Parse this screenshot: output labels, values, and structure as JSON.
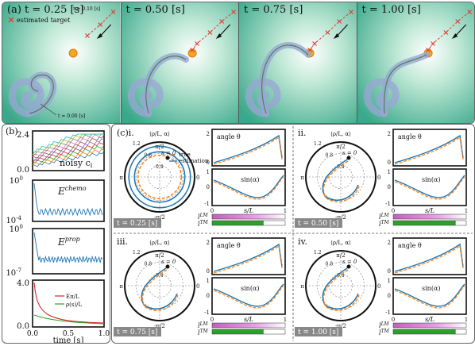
{
  "panel_a": {
    "label": "(a)",
    "frames": [
      {
        "title": "t = 0.25 [s]"
      },
      {
        "title": "t = 0.50 [s]"
      },
      {
        "title": "t = 0.75 [s]"
      },
      {
        "title": "t = 1.00 [s]"
      }
    ],
    "legend_target": "estimated target",
    "annot_start": "t = 0.00 [s]",
    "annot_target": "t = 0.10 [s]"
  },
  "panel_b": {
    "label": "(b)",
    "plot1": {
      "ymax": "2.4",
      "ymin": "0.0",
      "title": "noisy c",
      "sub": "i"
    },
    "plot2": {
      "ymax": "10",
      "ymax_exp": "0",
      "ymin": "10",
      "ymin_exp": "-4",
      "title": "E",
      "sup": "chemo"
    },
    "plot3": {
      "ymax": "10",
      "ymax_exp": "0",
      "ymin": "10",
      "ymin_exp": "-7",
      "title": "E",
      "sup": "prop"
    },
    "plot4": {
      "ymax": "4.0",
      "ymin": "0.0",
      "legend": [
        "Eπ/L",
        "ρ(s)/L"
      ],
      "colors": [
        "#d62728",
        "#2ca02c"
      ]
    },
    "xticks": [
      "0.0",
      "0.5",
      "1.0"
    ],
    "xlabel": "time [s]"
  },
  "panel_c": {
    "label": "(c)",
    "subs": [
      {
        "roman": "i.",
        "time": "t = 0.25 [s]"
      },
      {
        "roman": "ii.",
        "time": "t = 0.50 [s]"
      },
      {
        "roman": "iii.",
        "time": "t = 0.75 [s]"
      },
      {
        "roman": "iv.",
        "time": "t = 1.00 [s]"
      }
    ],
    "polar_title": "⟨ρ/L, α⟩",
    "polar_ticks": [
      "1.2",
      "0.8",
      "0.4"
    ],
    "polar_angles": [
      "π/2",
      "π",
      "-π/2",
      "0"
    ],
    "s_label": "s = 0",
    "legend": [
      "true",
      "estimation"
    ],
    "legend_colors": [
      "#ff7f0e",
      "#1f77b4"
    ],
    "angle_label": "angle θ",
    "sin_label": "sin(α)",
    "y_ticks_top": [
      "2",
      "0"
    ],
    "y_ticks_bot": [
      "1",
      "0",
      "-1"
    ],
    "x_ticks": [
      "0",
      "1"
    ],
    "xlabel": "s/L",
    "lm": "l",
    "lm_sup": "LM",
    "tm": "l",
    "tm_sup": "TM"
  }
}
